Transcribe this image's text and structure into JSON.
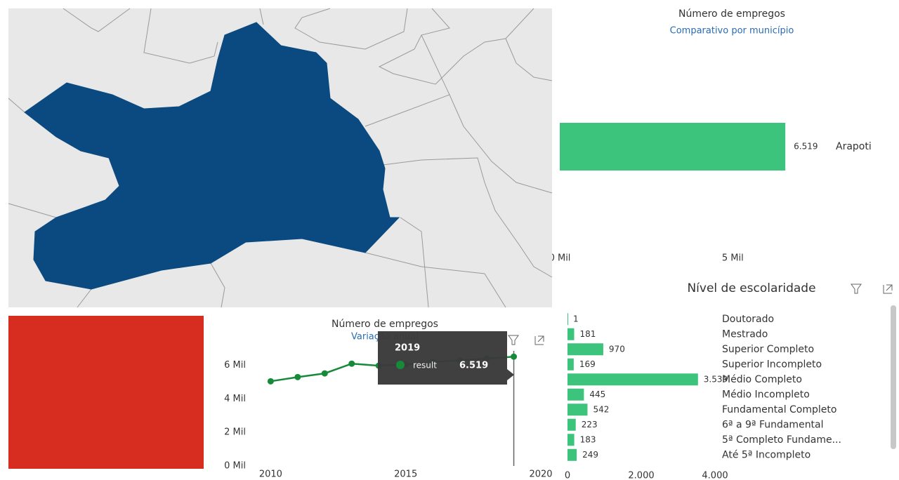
{
  "chart_data": [
    {
      "type": "bar",
      "orientation": "horizontal",
      "title": "Número de empregos",
      "subtitle": "Comparativo por município",
      "categories": [
        "Arapoti"
      ],
      "values": [
        6519
      ],
      "value_labels": [
        "6.519"
      ],
      "color": "#3cc47c",
      "xlim": [
        0,
        6800
      ],
      "xticks": [
        {
          "value": 0,
          "label": "0 Mil"
        },
        {
          "value": 5000,
          "label": "5 Mil"
        }
      ]
    },
    {
      "type": "line",
      "title": "Número de empregos",
      "subtitle": "Variação anual",
      "x": [
        2010,
        2011,
        2012,
        2013,
        2014,
        2015,
        2016,
        2017,
        2018,
        2019
      ],
      "series": [
        {
          "name": "result",
          "color": "#178a3a",
          "values": [
            5050,
            5300,
            5520,
            6100,
            5980,
            6050,
            6200,
            6300,
            6400,
            6519
          ]
        }
      ],
      "xlim": [
        2009.6,
        2020
      ],
      "xticks": [
        2010,
        2015,
        2020
      ],
      "ylim": [
        0,
        7700
      ],
      "yticks": [
        {
          "value": 0,
          "label": "0 Mil"
        },
        {
          "value": 2000,
          "label": "2 Mil"
        },
        {
          "value": 4000,
          "label": "4 Mil"
        },
        {
          "value": 6000,
          "label": "6 Mil"
        }
      ],
      "tooltip": {
        "x": 2019,
        "name": "result",
        "value": 6519,
        "value_label": "6.519"
      }
    },
    {
      "type": "bar",
      "orientation": "horizontal",
      "title": "Nível de escolaridade",
      "categories": [
        "Doutorado",
        "Mestrado",
        "Superior Completo",
        "Superior Incompleto",
        "Médio Completo",
        "Médio Incompleto",
        "Fundamental Completo",
        "6ª a 9ª Fundamental",
        "5ª Completo Fundame...",
        "Até 5ª Incompleto"
      ],
      "values": [
        1,
        181,
        970,
        169,
        3539,
        445,
        542,
        223,
        183,
        249
      ],
      "value_labels": [
        "1",
        "181",
        "970",
        "169",
        "3.539",
        "445",
        "542",
        "223",
        "183",
        "249"
      ],
      "color": "#3cc47c",
      "xlim": [
        0,
        4000
      ],
      "xticks": [
        0,
        {
          "value": 2000,
          "label": "2.000"
        },
        {
          "value": 4000,
          "label": "4.000"
        }
      ]
    }
  ]
}
